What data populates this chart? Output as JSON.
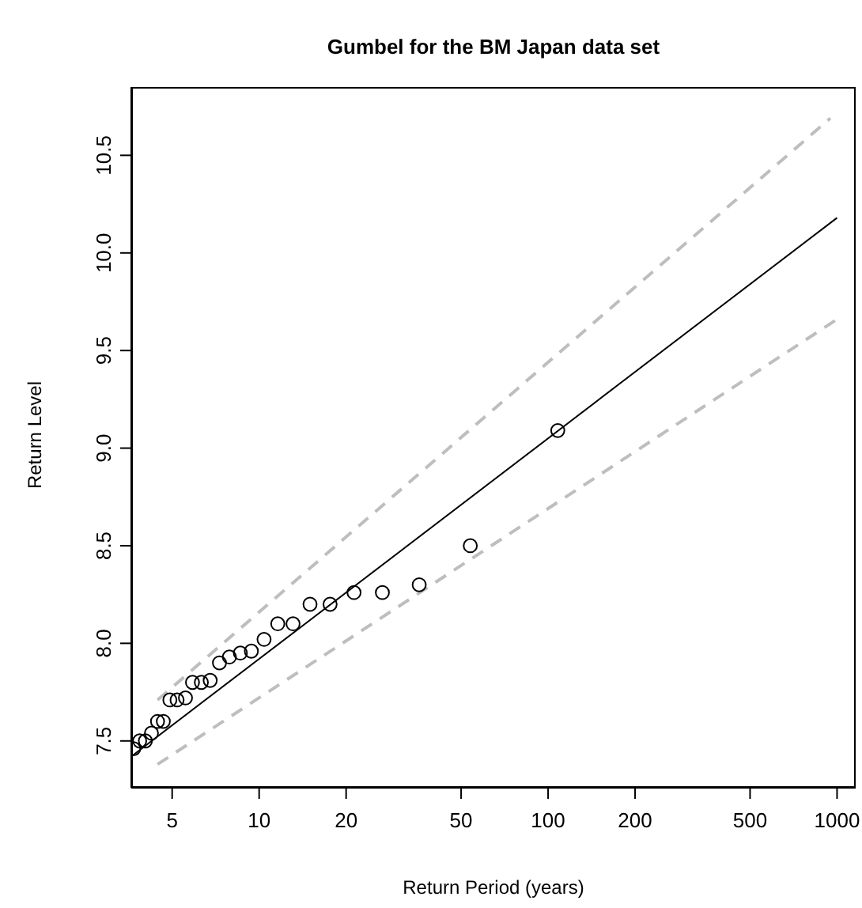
{
  "chart_data": {
    "type": "scatter",
    "title": "Gumbel for the BM Japan data set",
    "xlabel": "Return Period (years)",
    "ylabel": "Return Level",
    "log": "x",
    "xlim": [
      3.61,
      1160
    ],
    "ylim": [
      7.26,
      10.85
    ],
    "xticks": [
      5,
      10,
      20,
      50,
      100,
      200,
      500,
      1000
    ],
    "yticks": [
      {
        "value": 7.5,
        "label": "7.5"
      },
      {
        "value": 8,
        "label": "8.0"
      },
      {
        "value": 8.5,
        "label": "8.5"
      },
      {
        "value": 9,
        "label": "9.0"
      },
      {
        "value": 9.5,
        "label": "9.5"
      },
      {
        "value": 10,
        "label": "10.0"
      },
      {
        "value": 10.5,
        "label": "10.5"
      }
    ],
    "series": [
      {
        "marker": "circle",
        "color": "#000000",
        "x": [
          3.68,
          3.86,
          4.04,
          4.24,
          4.45,
          4.66,
          4.91,
          5.2,
          5.56,
          5.88,
          6.31,
          6.77,
          7.29,
          7.89,
          8.61,
          9.4,
          10.4,
          11.6,
          13.1,
          15.0,
          17.6,
          21.3,
          26.7,
          35.8,
          53.8,
          108
        ],
        "values": [
          7.46,
          7.5,
          7.5,
          7.54,
          7.6,
          7.6,
          7.71,
          7.71,
          7.72,
          7.8,
          7.8,
          7.81,
          7.9,
          7.93,
          7.95,
          7.96,
          8.02,
          8.1,
          8.1,
          8.2,
          8.2,
          8.26,
          8.26,
          8.3,
          8.5,
          9.09
        ]
      },
      {
        "type": "line",
        "line_style": "solid",
        "color": "#000000",
        "x": [
          3.61,
          1000
        ],
        "values": [
          7.42,
          10.18
        ]
      },
      {
        "type": "line",
        "line_style": "dashed",
        "color": "#bebebe",
        "x": [
          4.45,
          948
        ],
        "values": [
          7.71,
          10.69
        ]
      },
      {
        "type": "line",
        "line_style": "dashed",
        "color": "#bebebe",
        "x": [
          4.45,
          1000
        ],
        "values": [
          7.38,
          9.66
        ]
      }
    ]
  }
}
